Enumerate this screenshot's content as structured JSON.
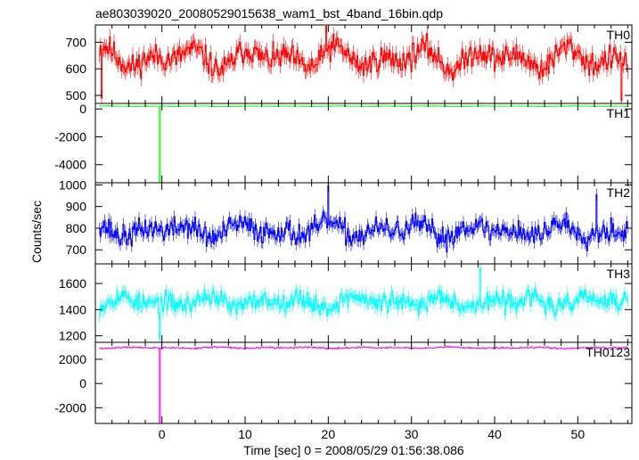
{
  "chart_data": {
    "type": "line",
    "title": "ae803039020_20080529015638_wam1_bst_4band_16bin.qdp",
    "xlabel": "Time [sec] 0 = 2008/05/29 01:56:38.086",
    "ylabel": "Counts/sec",
    "xlim": [
      -8,
      56.5
    ],
    "x_ticks": [
      0,
      10,
      20,
      30,
      40,
      50
    ],
    "panels": [
      {
        "name": "TH0",
        "color": "#ff0000",
        "ylim": [
          470,
          765
        ],
        "y_ticks": [
          500,
          600,
          700
        ],
        "series": {
          "start": -7.5,
          "step": 0.125,
          "base": 640,
          "amp": 45,
          "noise": 35,
          "err": 28,
          "seed": 11,
          "spikes": [
            {
              "x": -7.3,
              "y": 490
            },
            {
              "x": 19.8,
              "y": 760
            },
            {
              "x": 55.3,
              "y": 480
            }
          ]
        }
      },
      {
        "name": "TH1",
        "color": "#00ff00",
        "ylim": [
          -5300,
          400
        ],
        "y_ticks": [
          -4000,
          -2000,
          0
        ],
        "series": {
          "start": -7.5,
          "step": 0.125,
          "base": 200,
          "amp": 20,
          "noise": 15,
          "err": 12,
          "seed": 23,
          "spikes": [
            {
              "x": -0.3,
              "y": -5300
            }
          ]
        }
      },
      {
        "name": "TH2",
        "color": "#0000ff",
        "ylim": [
          635,
          1010
        ],
        "y_ticks": [
          700,
          800,
          900,
          1000
        ],
        "series": {
          "start": -7.5,
          "step": 0.125,
          "base": 790,
          "amp": 35,
          "noise": 40,
          "err": 28,
          "seed": 37,
          "spikes": [
            {
              "x": 20,
              "y": 995
            },
            {
              "x": 52.3,
              "y": 955
            }
          ]
        }
      },
      {
        "name": "TH3",
        "color": "#00ffff",
        "ylim": [
          1150,
          1750
        ],
        "y_ticks": [
          1200,
          1400,
          1600
        ],
        "series": {
          "start": -7.5,
          "step": 0.125,
          "base": 1460,
          "amp": 50,
          "noise": 55,
          "err": 45,
          "seed": 53,
          "spikes": [
            {
              "x": 38.2,
              "y": 1720
            },
            {
              "x": -0.2,
              "y": 1180
            }
          ]
        }
      },
      {
        "name": "TH0123",
        "color": "#ff00ff",
        "ylim": [
          -3300,
          3400
        ],
        "y_ticks": [
          -2000,
          0,
          2000
        ],
        "series": {
          "start": -7.5,
          "step": 0.125,
          "base": 2950,
          "amp": 60,
          "noise": 45,
          "err": 40,
          "seed": 71,
          "spikes": [
            {
              "x": -0.3,
              "y": -3300
            }
          ]
        }
      }
    ]
  }
}
